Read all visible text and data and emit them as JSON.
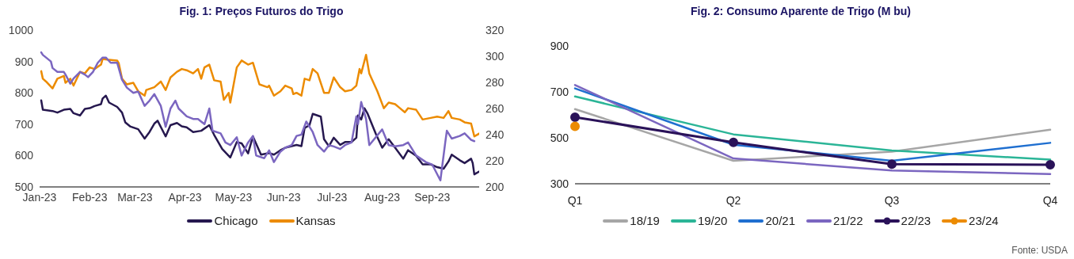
{
  "chart_data": [
    {
      "type": "line",
      "title": "Fig. 1: Preços Futuros do Trigo",
      "legend": "bottom",
      "xlim": [
        "2023-01-01",
        "2023-09-30"
      ],
      "xticks": [
        {
          "value": "2023-01-01",
          "label": "Jan-23"
        },
        {
          "value": "2023-02-01",
          "label": "Feb-23"
        },
        {
          "value": "2023-03-01",
          "label": "Mar-23"
        },
        {
          "value": "2023-04-01",
          "label": "Apr-23"
        },
        {
          "value": "2023-05-01",
          "label": "May-23"
        },
        {
          "value": "2023-06-01",
          "label": "Jun-23"
        },
        {
          "value": "2023-07-01",
          "label": "Jul-23"
        },
        {
          "value": "2023-08-01",
          "label": "Aug-23"
        },
        {
          "value": "2023-09-01",
          "label": "Sep-23"
        }
      ],
      "ylim": [
        500,
        1000
      ],
      "yticks": [
        500,
        600,
        700,
        800,
        900,
        1000
      ],
      "y2lim": [
        200,
        320
      ],
      "y2ticks": [
        200,
        220,
        240,
        260,
        280,
        300,
        320
      ],
      "series": [
        {
          "name": "Chicago",
          "color": "#26184f",
          "x": [
            "2023-01-02",
            "2023-01-03",
            "2023-01-09",
            "2023-01-12",
            "2023-01-16",
            "2023-01-20",
            "2023-01-22",
            "2023-01-26",
            "2023-01-29",
            "2023-02-01",
            "2023-02-04",
            "2023-02-08",
            "2023-02-09",
            "2023-02-11",
            "2023-02-13",
            "2023-02-18",
            "2023-02-21",
            "2023-02-23",
            "2023-02-26",
            "2023-03-03",
            "2023-03-07",
            "2023-03-10",
            "2023-03-13",
            "2023-03-15",
            "2023-03-20",
            "2023-03-23",
            "2023-03-27",
            "2023-03-30",
            "2023-04-02",
            "2023-04-06",
            "2023-04-11",
            "2023-04-16",
            "2023-04-19",
            "2023-04-24",
            "2023-04-29",
            "2023-05-03",
            "2023-05-06",
            "2023-05-10",
            "2023-05-13",
            "2023-05-18",
            "2023-05-23",
            "2023-05-26",
            "2023-05-30",
            "2023-06-02",
            "2023-06-06",
            "2023-06-09",
            "2023-06-12",
            "2023-06-14",
            "2023-06-17",
            "2023-06-19",
            "2023-06-24",
            "2023-06-26",
            "2023-06-29",
            "2023-07-02",
            "2023-07-06",
            "2023-07-09",
            "2023-07-13",
            "2023-07-16",
            "2023-07-17",
            "2023-07-19",
            "2023-07-21",
            "2023-07-23",
            "2023-07-28",
            "2023-08-01",
            "2023-08-05",
            "2023-08-09",
            "2023-08-14",
            "2023-08-17",
            "2023-08-22",
            "2023-08-26",
            "2023-08-31",
            "2023-09-04",
            "2023-09-08",
            "2023-09-11",
            "2023-09-13",
            "2023-09-18",
            "2023-09-21",
            "2023-09-25",
            "2023-09-26",
            "2023-09-27",
            "2023-09-30"
          ],
          "values": [
            776,
            746,
            742,
            737,
            746,
            749,
            735,
            728,
            749,
            751,
            758,
            764,
            782,
            791,
            769,
            755,
            737,
            706,
            693,
            684,
            654,
            675,
            702,
            711,
            661,
            697,
            704,
            693,
            690,
            675,
            679,
            697,
            666,
            621,
            594,
            643,
            639,
            607,
            661,
            603,
            608,
            603,
            617,
            625,
            630,
            634,
            630,
            688,
            697,
            733,
            724,
            652,
            630,
            657,
            634,
            643,
            643,
            657,
            728,
            715,
            751,
            733,
            670,
            625,
            652,
            625,
            590,
            617,
            599,
            572,
            572,
            563,
            558,
            581,
            603,
            585,
            576,
            590,
            576,
            540,
            549
          ]
        },
        {
          "name": "Kansas",
          "color": "#ec8b00",
          "x": [
            "2023-01-02",
            "2023-01-03",
            "2023-01-05",
            "2023-01-09",
            "2023-01-12",
            "2023-01-16",
            "2023-01-17",
            "2023-01-20",
            "2023-01-22",
            "2023-01-26",
            "2023-01-29",
            "2023-02-01",
            "2023-02-04",
            "2023-02-08",
            "2023-02-09",
            "2023-02-13",
            "2023-02-18",
            "2023-02-19",
            "2023-02-21",
            "2023-02-24",
            "2023-02-28",
            "2023-03-03",
            "2023-03-07",
            "2023-03-08",
            "2023-03-13",
            "2023-03-17",
            "2023-03-20",
            "2023-03-23",
            "2023-03-27",
            "2023-03-30",
            "2023-04-02",
            "2023-04-06",
            "2023-04-09",
            "2023-04-11",
            "2023-04-13",
            "2023-04-16",
            "2023-04-19",
            "2023-04-23",
            "2023-04-25",
            "2023-04-28",
            "2023-04-29",
            "2023-05-03",
            "2023-05-06",
            "2023-05-10",
            "2023-05-13",
            "2023-05-17",
            "2023-05-22",
            "2023-05-23",
            "2023-05-26",
            "2023-05-30",
            "2023-06-02",
            "2023-06-06",
            "2023-06-07",
            "2023-06-09",
            "2023-06-12",
            "2023-06-14",
            "2023-06-17",
            "2023-06-19",
            "2023-06-22",
            "2023-06-26",
            "2023-06-29",
            "2023-07-02",
            "2023-07-06",
            "2023-07-09",
            "2023-07-13",
            "2023-07-16",
            "2023-07-18",
            "2023-07-19",
            "2023-07-22",
            "2023-07-24",
            "2023-07-29",
            "2023-08-02",
            "2023-08-05",
            "2023-08-09",
            "2023-08-12",
            "2023-08-15",
            "2023-08-17",
            "2023-08-22",
            "2023-08-26",
            "2023-08-31",
            "2023-09-04",
            "2023-09-08",
            "2023-09-11",
            "2023-09-13",
            "2023-09-18",
            "2023-09-21",
            "2023-09-25",
            "2023-09-27",
            "2023-09-30"
          ],
          "values": [
            869,
            845,
            836,
            814,
            845,
            854,
            832,
            845,
            823,
            867,
            862,
            881,
            876,
            890,
            908,
            905,
            903,
            894,
            845,
            827,
            832,
            805,
            791,
            809,
            818,
            836,
            809,
            849,
            867,
            876,
            872,
            862,
            876,
            845,
            881,
            890,
            840,
            836,
            778,
            800,
            769,
            881,
            903,
            890,
            896,
            827,
            818,
            823,
            791,
            805,
            823,
            814,
            796,
            800,
            791,
            845,
            840,
            876,
            862,
            800,
            800,
            849,
            818,
            805,
            809,
            823,
            876,
            862,
            921,
            862,
            805,
            751,
            769,
            764,
            751,
            738,
            751,
            746,
            715,
            720,
            724,
            720,
            742,
            720,
            715,
            706,
            702,
            661,
            670
          ]
        },
        {
          "color": "#7b66c0",
          "axis": "y2",
          "x": [
            "2023-01-02",
            "2023-01-03",
            "2023-01-05",
            "2023-01-08",
            "2023-01-09",
            "2023-01-12",
            "2023-01-16",
            "2023-01-17",
            "2023-01-20",
            "2023-01-22",
            "2023-01-26",
            "2023-01-29",
            "2023-01-31",
            "2023-02-03",
            "2023-02-06",
            "2023-02-09",
            "2023-02-11",
            "2023-02-14",
            "2023-02-18",
            "2023-02-21",
            "2023-02-24",
            "2023-02-28",
            "2023-03-03",
            "2023-03-07",
            "2023-03-10",
            "2023-03-13",
            "2023-03-17",
            "2023-03-20",
            "2023-03-23",
            "2023-03-26",
            "2023-03-28",
            "2023-04-02",
            "2023-04-06",
            "2023-04-09",
            "2023-04-13",
            "2023-04-16",
            "2023-04-18",
            "2023-04-23",
            "2023-04-26",
            "2023-04-29",
            "2023-05-03",
            "2023-05-06",
            "2023-05-10",
            "2023-05-13",
            "2023-05-15",
            "2023-05-20",
            "2023-05-23",
            "2023-05-26",
            "2023-05-30",
            "2023-06-02",
            "2023-06-06",
            "2023-06-09",
            "2023-06-12",
            "2023-06-15",
            "2023-06-19",
            "2023-06-22",
            "2023-06-26",
            "2023-06-29",
            "2023-07-02",
            "2023-07-06",
            "2023-07-09",
            "2023-07-13",
            "2023-07-16",
            "2023-07-17",
            "2023-07-19",
            "2023-07-22",
            "2023-07-24",
            "2023-08-01",
            "2023-08-05",
            "2023-08-09",
            "2023-08-14",
            "2023-08-17",
            "2023-08-22",
            "2023-08-28",
            "2023-09-01",
            "2023-09-06",
            "2023-09-09",
            "2023-09-10",
            "2023-09-13",
            "2023-09-18",
            "2023-09-21",
            "2023-09-25",
            "2023-09-27"
          ],
          "values": [
            303,
            301,
            299,
            296,
            291,
            288,
            288,
            286,
            279,
            283,
            288,
            286,
            284,
            288,
            295,
            299,
            299,
            295,
            295,
            282,
            276,
            272,
            273,
            262,
            266,
            271,
            262,
            246,
            260,
            266,
            260,
            254,
            252,
            252,
            248,
            260,
            243,
            241,
            234,
            232,
            238,
            224,
            234,
            239,
            224,
            222,
            228,
            219,
            227,
            230,
            232,
            239,
            240,
            250,
            242,
            232,
            227,
            232,
            231,
            229,
            232,
            234,
            254,
            248,
            265,
            252,
            232,
            244,
            232,
            231,
            232,
            234,
            224,
            219,
            217,
            205,
            234,
            243,
            237,
            239,
            241,
            236,
            235
          ]
        }
      ]
    },
    {
      "type": "line",
      "title": "Fig. 2: Consumo Aparente de Trigo (M bu)",
      "legend": "bottom",
      "categories": [
        "Q1",
        "Q2",
        "Q3",
        "Q4"
      ],
      "ylim": [
        300,
        900
      ],
      "yticks": [
        300,
        500,
        700,
        900
      ],
      "annotations": [
        "Fonte: USDA"
      ],
      "series": [
        {
          "name": "18/19",
          "color": "#a6a6a6",
          "values": [
            625,
            400,
            440,
            535
          ]
        },
        {
          "name": "19/20",
          "color": "#2bb597",
          "values": [
            680,
            515,
            445,
            405
          ]
        },
        {
          "name": "20/21",
          "color": "#1f6fd0",
          "values": [
            715,
            470,
            400,
            478
          ]
        },
        {
          "name": "21/22",
          "color": "#7b66c0",
          "values": [
            730,
            410,
            358,
            342
          ]
        },
        {
          "name": "22/23",
          "color": "#2a1259",
          "marker": "circle",
          "values": [
            590,
            480,
            385,
            383
          ]
        },
        {
          "name": "23/24",
          "color": "#ec8b00",
          "marker": "circle",
          "values": [
            550,
            null,
            null,
            null
          ]
        }
      ]
    }
  ]
}
